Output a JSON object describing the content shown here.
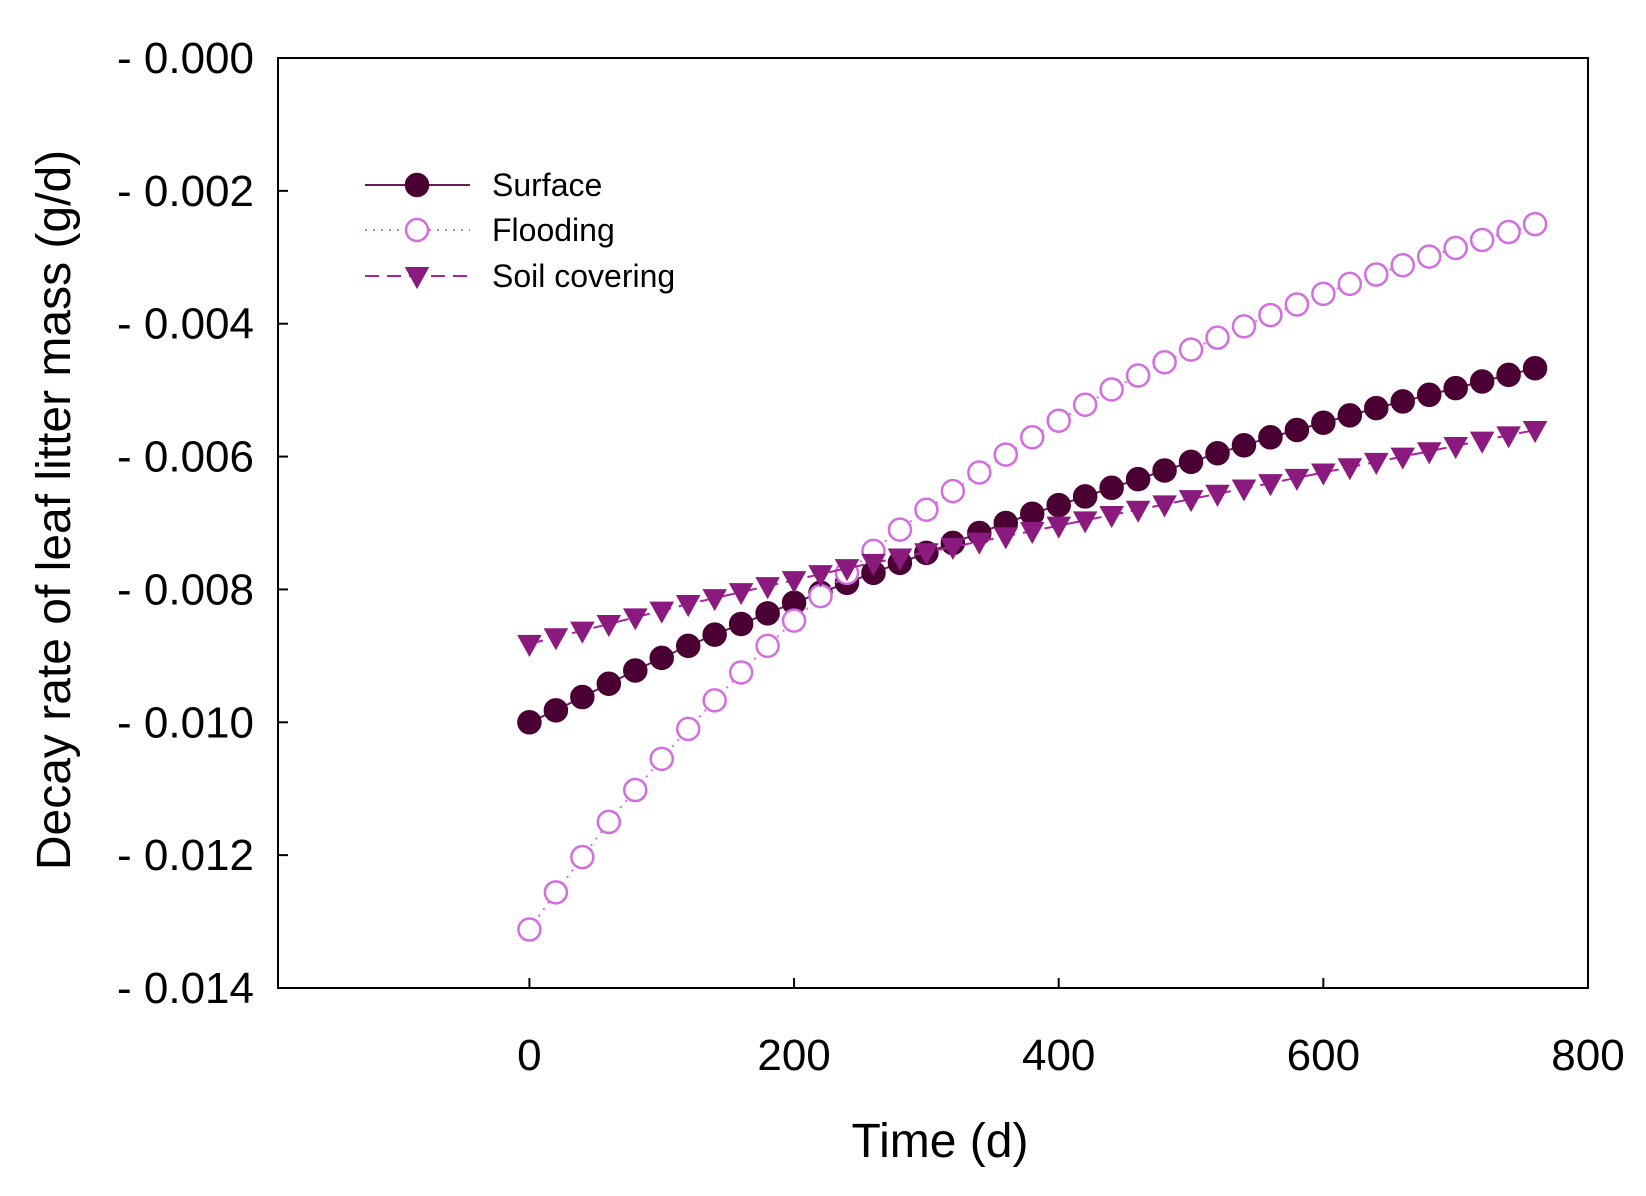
{
  "chart_data": {
    "type": "line",
    "title": "",
    "xlabel": "Time (d)",
    "ylabel": "Decay rate  of leaf litter mass (g/d)",
    "xlim": [
      -190,
      800
    ],
    "ylim": [
      -0.014,
      0.0
    ],
    "xticks": [
      0,
      200,
      400,
      600,
      800
    ],
    "xtick_labels": [
      "0",
      "200",
      "400",
      "600",
      "800"
    ],
    "yticks": [
      0.0,
      -0.002,
      -0.004,
      -0.006,
      -0.008,
      -0.01,
      -0.012,
      -0.014
    ],
    "ytick_labels": [
      "- 0.000",
      "- 0.002",
      "- 0.004",
      "- 0.006",
      "- 0.008",
      "- 0.010",
      "- 0.012",
      "- 0.014"
    ],
    "grid": false,
    "legend_position": "top-left",
    "x": [
      0,
      20,
      40,
      60,
      80,
      100,
      120,
      140,
      160,
      180,
      200,
      220,
      240,
      260,
      280,
      300,
      320,
      340,
      360,
      380,
      400,
      420,
      440,
      460,
      480,
      500,
      520,
      540,
      560,
      580,
      600,
      620,
      640,
      660,
      680,
      700,
      720,
      740,
      760
    ],
    "series": [
      {
        "name": "Surface",
        "marker": "filled-circle",
        "line": "solid",
        "values": [
          -0.01,
          -0.00982,
          -0.00962,
          -0.00942,
          -0.00922,
          -0.00903,
          -0.00885,
          -0.00868,
          -0.00852,
          -0.00836,
          -0.0082,
          -0.00805,
          -0.0079,
          -0.00775,
          -0.0076,
          -0.00745,
          -0.0073,
          -0.00715,
          -0.007,
          -0.00686,
          -0.00673,
          -0.0066,
          -0.00647,
          -0.00634,
          -0.00621,
          -0.00608,
          -0.00595,
          -0.00583,
          -0.00571,
          -0.0056,
          -0.00549,
          -0.00538,
          -0.00527,
          -0.00517,
          -0.00507,
          -0.00497,
          -0.00487,
          -0.00477,
          -0.00467
        ]
      },
      {
        "name": "Flooding",
        "marker": "open-circle",
        "line": "dotted",
        "values": [
          -0.01312,
          -0.01256,
          -0.01203,
          -0.0115,
          -0.01102,
          -0.01055,
          -0.0101,
          -0.00967,
          -0.00925,
          -0.00885,
          -0.00847,
          -0.0081,
          -0.00775,
          -0.00742,
          -0.0071,
          -0.0068,
          -0.00652,
          -0.00624,
          -0.00597,
          -0.00571,
          -0.00546,
          -0.00522,
          -0.00499,
          -0.00478,
          -0.00458,
          -0.00439,
          -0.00421,
          -0.00404,
          -0.00387,
          -0.00371,
          -0.00355,
          -0.0034,
          -0.00326,
          -0.00312,
          -0.00299,
          -0.00286,
          -0.00274,
          -0.00262,
          -0.0025
        ]
      },
      {
        "name": "Soil covering",
        "marker": "filled-triangle-down",
        "line": "dashed",
        "values": [
          -0.00882,
          -0.00872,
          -0.00862,
          -0.00852,
          -0.00842,
          -0.00832,
          -0.00822,
          -0.00813,
          -0.00804,
          -0.00795,
          -0.00786,
          -0.00777,
          -0.00768,
          -0.0076,
          -0.00752,
          -0.00744,
          -0.00736,
          -0.00728,
          -0.0072,
          -0.00712,
          -0.00704,
          -0.00696,
          -0.00688,
          -0.0068,
          -0.00672,
          -0.00664,
          -0.00656,
          -0.00648,
          -0.0064,
          -0.00632,
          -0.00624,
          -0.00616,
          -0.00608,
          -0.006,
          -0.00592,
          -0.00584,
          -0.00576,
          -0.00568,
          -0.0056
        ]
      }
    ],
    "colors": {
      "surface": "#4a0033",
      "surface_line": "#6b1a5c",
      "flooding": "#d26ee0",
      "soil_covering": "#8a1a7e",
      "soil_covering_line": "#aa22a0",
      "axis": "#000000",
      "background": "#ffffff"
    }
  }
}
